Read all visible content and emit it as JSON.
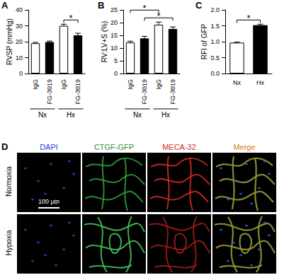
{
  "chart_data": [
    {
      "title": "A",
      "type": "bar",
      "y_label": "RVSP (mmHg)",
      "categories": [
        "IgG",
        "FG-3019",
        "IgG",
        "FG-3019"
      ],
      "groups": [
        {
          "label": "Nx",
          "members": [
            0,
            1
          ]
        },
        {
          "label": "Hx",
          "members": [
            2,
            3
          ]
        }
      ],
      "values": [
        19,
        19.8,
        30,
        24
      ],
      "errors": [
        0.6,
        0.6,
        1,
        1.3
      ],
      "colors": [
        "#ffffff",
        "#000000",
        "#ffffff",
        "#000000"
      ],
      "ylim": [
        0,
        40
      ],
      "yticks": [
        0,
        10,
        20,
        30,
        40
      ],
      "grid": false,
      "comparisons": [
        {
          "between": [
            2,
            3
          ],
          "label": "*"
        }
      ]
    },
    {
      "title": "B",
      "type": "bar",
      "y_label": "RV:LV+S (%)",
      "categories": [
        "IgG",
        "FG-3019",
        "IgG",
        "FG-3019"
      ],
      "groups": [
        {
          "label": "Nx",
          "members": [
            0,
            1
          ]
        },
        {
          "label": "Hx",
          "members": [
            2,
            3
          ]
        }
      ],
      "values": [
        12.2,
        13.8,
        19.2,
        17.5
      ],
      "errors": [
        0.5,
        0.8,
        1,
        0.8
      ],
      "colors": [
        "#ffffff",
        "#000000",
        "#ffffff",
        "#000000"
      ],
      "ylim": [
        0,
        25
      ],
      "yticks": [
        0,
        5,
        10,
        15,
        20,
        25
      ],
      "grid": false,
      "comparisons": [
        {
          "between": [
            1,
            3
          ],
          "label": "*"
        },
        {
          "between": [
            0,
            2
          ],
          "label": "*"
        }
      ]
    },
    {
      "title": "C",
      "type": "bar",
      "y_label": "RFI of GFP",
      "categories": [
        "Nx",
        "Hx"
      ],
      "values": [
        0.97,
        1.52
      ],
      "errors": [
        0.02,
        0.03
      ],
      "colors": [
        "#ffffff",
        "#000000"
      ],
      "ylim": [
        0,
        2
      ],
      "yticks": [
        {
          "value": 0,
          "label": "0.0"
        },
        0.5,
        {
          "value": 1,
          "label": "1.0"
        },
        1.5,
        {
          "value": 2,
          "label": "2.0"
        }
      ],
      "grid": false,
      "comparisons": [
        {
          "between": [
            0,
            1
          ],
          "label": "*"
        }
      ]
    }
  ],
  "image_panel": {
    "title": "D",
    "columns": [
      "DAPI",
      "CTGF-GFP",
      "MECA-32",
      "Merge"
    ],
    "column_colors": [
      "#2b3fcf",
      "#2f8f3a",
      "#d42a2a",
      "#e07a22"
    ],
    "rows": [
      "Normoxia",
      "Hypoxia"
    ],
    "scale_bar": "100 μm"
  }
}
